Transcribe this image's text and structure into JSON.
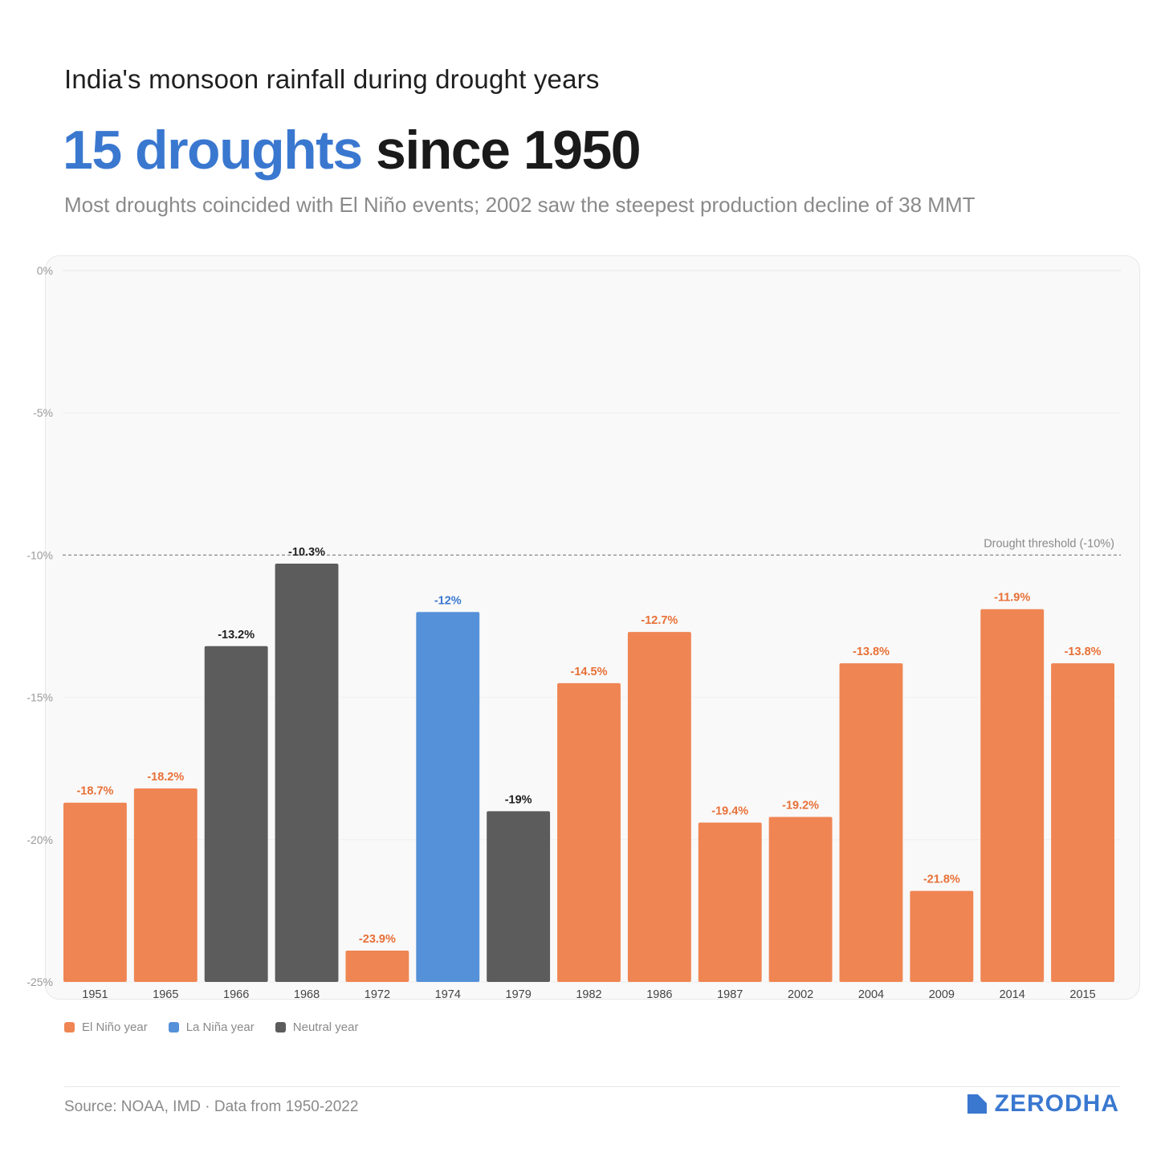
{
  "header": {
    "kicker": "India's monsoon rainfall during drought years",
    "headline_accent": "15 droughts",
    "headline_rest": "since 1950",
    "subtitle": "Most droughts coincided with El Niño events; 2002 saw the steepest production decline of 38 MMT"
  },
  "colors": {
    "el_nino": "#ef8553",
    "la_nina": "#5591d8",
    "neutral": "#5c5c5c",
    "el_nino_label": "#e87037",
    "la_nina_label": "#3a78d0",
    "neutral_label": "#1f1f1f",
    "accent": "#3a78d0"
  },
  "chart_data": {
    "type": "bar",
    "title": "India's monsoon rainfall during drought years",
    "ylabel": "",
    "xlabel": "",
    "ylim": [
      -25,
      0
    ],
    "yticks": [
      0,
      -5,
      -10,
      -15,
      -20,
      -25
    ],
    "ytick_labels": [
      "0%",
      "-5%",
      "-10%",
      "-15%",
      "-20%",
      "-25%"
    ],
    "threshold": {
      "value": -10,
      "label": "Drought threshold (-10%)"
    },
    "categories": [
      "1951",
      "1965",
      "1966",
      "1968",
      "1972",
      "1974",
      "1979",
      "1982",
      "1986",
      "1987",
      "2002",
      "2004",
      "2009",
      "2014",
      "2015"
    ],
    "values": [
      -18.7,
      -18.2,
      -13.2,
      -10.3,
      -23.9,
      -12,
      -19,
      -14.5,
      -12.7,
      -19.4,
      -19.2,
      -13.8,
      -21.8,
      -11.9,
      -13.8
    ],
    "value_labels": [
      "-18.7%",
      "-18.2%",
      "-13.2%",
      "-10.3%",
      "-23.9%",
      "-12%",
      "-19%",
      "-14.5%",
      "-12.7%",
      "-19.4%",
      "-19.2%",
      "-13.8%",
      "-21.8%",
      "-11.9%",
      "-13.8%"
    ],
    "phase": [
      "el_nino",
      "el_nino",
      "neutral",
      "neutral",
      "el_nino",
      "la_nina",
      "neutral",
      "el_nino",
      "el_nino",
      "el_nino",
      "el_nino",
      "el_nino",
      "el_nino",
      "el_nino",
      "el_nino"
    ],
    "legend": [
      {
        "key": "el_nino",
        "label": "El Niño year"
      },
      {
        "key": "la_nina",
        "label": "La Niña year"
      },
      {
        "key": "neutral",
        "label": "Neutral year"
      }
    ]
  },
  "footer": {
    "source": "Source: NOAA, IMD · Data from 1950-2022",
    "brand": "ZERODHA"
  }
}
